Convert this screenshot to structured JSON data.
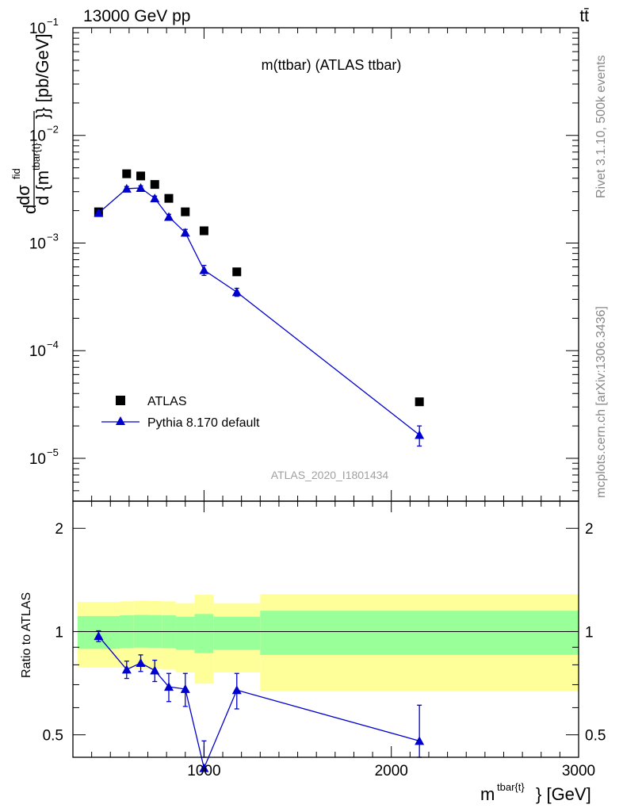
{
  "header": {
    "left": "13000 GeV pp",
    "right": "tt̄"
  },
  "side": {
    "rivet": "Rivet 3.1.10,  500k events",
    "mcplots": "mcplots.cern.ch [arXiv:1306.3436]"
  },
  "main_panel": {
    "title": "m(ttbar) (ATLAS ttbar)",
    "watermark": "ATLAS_2020_I1801434",
    "ylabel_parts": [
      "d",
      "dσ",
      "fid",
      "d {m",
      "tbar{t}",
      "}} [pb/GeV]"
    ],
    "y_tick_labels": [
      {
        "base": "10",
        "exp": "−1"
      },
      {
        "base": "10",
        "exp": "−2"
      },
      {
        "base": "10",
        "exp": "−3"
      },
      {
        "base": "10",
        "exp": "−4"
      },
      {
        "base": "10",
        "exp": "−5"
      }
    ]
  },
  "ratio_panel": {
    "ylabel": "Ratio to ATLAS",
    "y_tick_labels": [
      "2",
      "1",
      "0.5"
    ]
  },
  "x_axis": {
    "label_base": "m",
    "label_sup": "tbar{t}",
    "label_tail": "} [GeV]",
    "tick_labels": [
      "1000",
      "2000",
      "3000"
    ]
  },
  "legend": [
    {
      "label": "ATLAS",
      "marker": "square",
      "color": "#000000"
    },
    {
      "label": "Pythia 8.170 default",
      "marker": "triangle",
      "color": "#0000cc"
    }
  ],
  "chart_data": {
    "type": "scatter",
    "x_range": [
      300,
      3000
    ],
    "y_scale": "log",
    "y_range": [
      4e-06,
      0.1
    ],
    "ratio_scale": "log",
    "ratio_range": [
      0.43,
      2.4
    ],
    "bins": [
      {
        "lo": 325,
        "hi": 550,
        "x": 437,
        "data": 0.00195,
        "mc": 0.0019,
        "mc_err": 0.0001,
        "ratio": 0.97,
        "ratio_err": 0.035,
        "band_inner": [
          0.89,
          1.11
        ],
        "band_outer": [
          0.785,
          1.22
        ]
      },
      {
        "lo": 550,
        "hi": 625,
        "x": 587,
        "data": 0.0044,
        "mc": 0.0032,
        "mc_err": 0.00015,
        "ratio": 0.775,
        "ratio_err": 0.045,
        "band_inner": [
          0.895,
          1.115
        ],
        "band_outer": [
          0.785,
          1.225
        ]
      },
      {
        "lo": 625,
        "hi": 700,
        "x": 662,
        "data": 0.0042,
        "mc": 0.00325,
        "mc_err": 0.00015,
        "ratio": 0.81,
        "ratio_err": 0.045,
        "band_inner": [
          0.898,
          1.118
        ],
        "band_outer": [
          0.78,
          1.23
        ]
      },
      {
        "lo": 700,
        "hi": 775,
        "x": 737,
        "data": 0.0035,
        "mc": 0.0026,
        "mc_err": 0.00013,
        "ratio": 0.77,
        "ratio_err": 0.055,
        "band_inner": [
          0.897,
          1.117
        ],
        "band_outer": [
          0.778,
          1.228
        ]
      },
      {
        "lo": 775,
        "hi": 850,
        "x": 812,
        "data": 0.0026,
        "mc": 0.00175,
        "mc_err": 0.0001,
        "ratio": 0.69,
        "ratio_err": 0.065,
        "band_inner": [
          0.895,
          1.115
        ],
        "band_outer": [
          0.775,
          1.225
        ]
      },
      {
        "lo": 850,
        "hi": 950,
        "x": 900,
        "data": 0.00195,
        "mc": 0.00125,
        "mc_err": 9e-05,
        "ratio": 0.68,
        "ratio_err": 0.075,
        "band_inner": [
          0.885,
          1.105
        ],
        "band_outer": [
          0.76,
          1.21
        ]
      },
      {
        "lo": 950,
        "hi": 1050,
        "x": 1000,
        "data": 0.0013,
        "mc": 0.00056,
        "mc_err": 6e-05,
        "ratio": 0.4,
        "ratio_err": 0.08,
        "band_inner": [
          0.865,
          1.125
        ],
        "band_outer": [
          0.705,
          1.28
        ]
      },
      {
        "lo": 1050,
        "hi": 1300,
        "x": 1175,
        "data": 0.00054,
        "mc": 0.00035,
        "mc_err": 3e-05,
        "ratio": 0.675,
        "ratio_err": 0.08,
        "band_inner": [
          0.885,
          1.105
        ],
        "band_outer": [
          0.76,
          1.21
        ]
      },
      {
        "lo": 1300,
        "hi": 3000,
        "x": 2150,
        "data": 3.35e-05,
        "mc": 1.65e-05,
        "mc_err": 3.5e-06,
        "ratio": 0.48,
        "ratio_err": 0.13,
        "band_inner": [
          0.855,
          1.15
        ],
        "band_outer": [
          0.67,
          1.285
        ]
      }
    ]
  }
}
